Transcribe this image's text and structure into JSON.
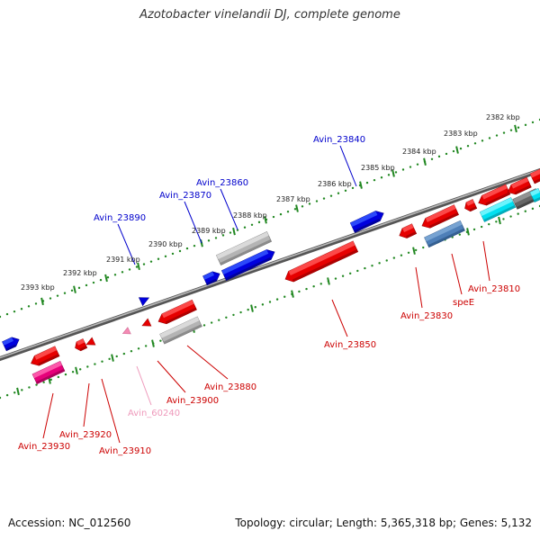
{
  "title": "Azotobacter vinelandii DJ, complete genome",
  "footer": {
    "accession": "Accession: NC_012560",
    "stats": "Topology: circular; Length: 5,365,318 bp; Genes: 5,132"
  },
  "colors": {
    "forward_label": "#0000cc",
    "reverse_label": "#cc0000",
    "pink_label": "#ee99bb",
    "backbone": "#888888",
    "tick": "#228822"
  },
  "tick_labels": [
    "2382 kbp",
    "2383 kbp",
    "2384 kbp",
    "2385 kbp",
    "2386 kbp",
    "2387 kbp",
    "2388 kbp",
    "2389 kbp",
    "2390 kbp",
    "2391 kbp",
    "2392 kbp",
    "2393 kbp"
  ],
  "gene_labels": [
    {
      "text": "Avin_23840",
      "strand": "forward"
    },
    {
      "text": "Avin_23860",
      "strand": "forward"
    },
    {
      "text": "Avin_23870",
      "strand": "forward"
    },
    {
      "text": "Avin_23890",
      "strand": "forward"
    },
    {
      "text": "Avin_23810",
      "strand": "reverse"
    },
    {
      "text": "speE",
      "strand": "reverse"
    },
    {
      "text": "Avin_23830",
      "strand": "reverse"
    },
    {
      "text": "Avin_23850",
      "strand": "reverse"
    },
    {
      "text": "Avin_23880",
      "strand": "reverse"
    },
    {
      "text": "Avin_23900",
      "strand": "reverse"
    },
    {
      "text": "Avin_60240",
      "strand": "pink"
    },
    {
      "text": "Avin_23920",
      "strand": "reverse"
    },
    {
      "text": "Avin_23910",
      "strand": "reverse"
    },
    {
      "text": "Avin_23930",
      "strand": "reverse"
    }
  ]
}
